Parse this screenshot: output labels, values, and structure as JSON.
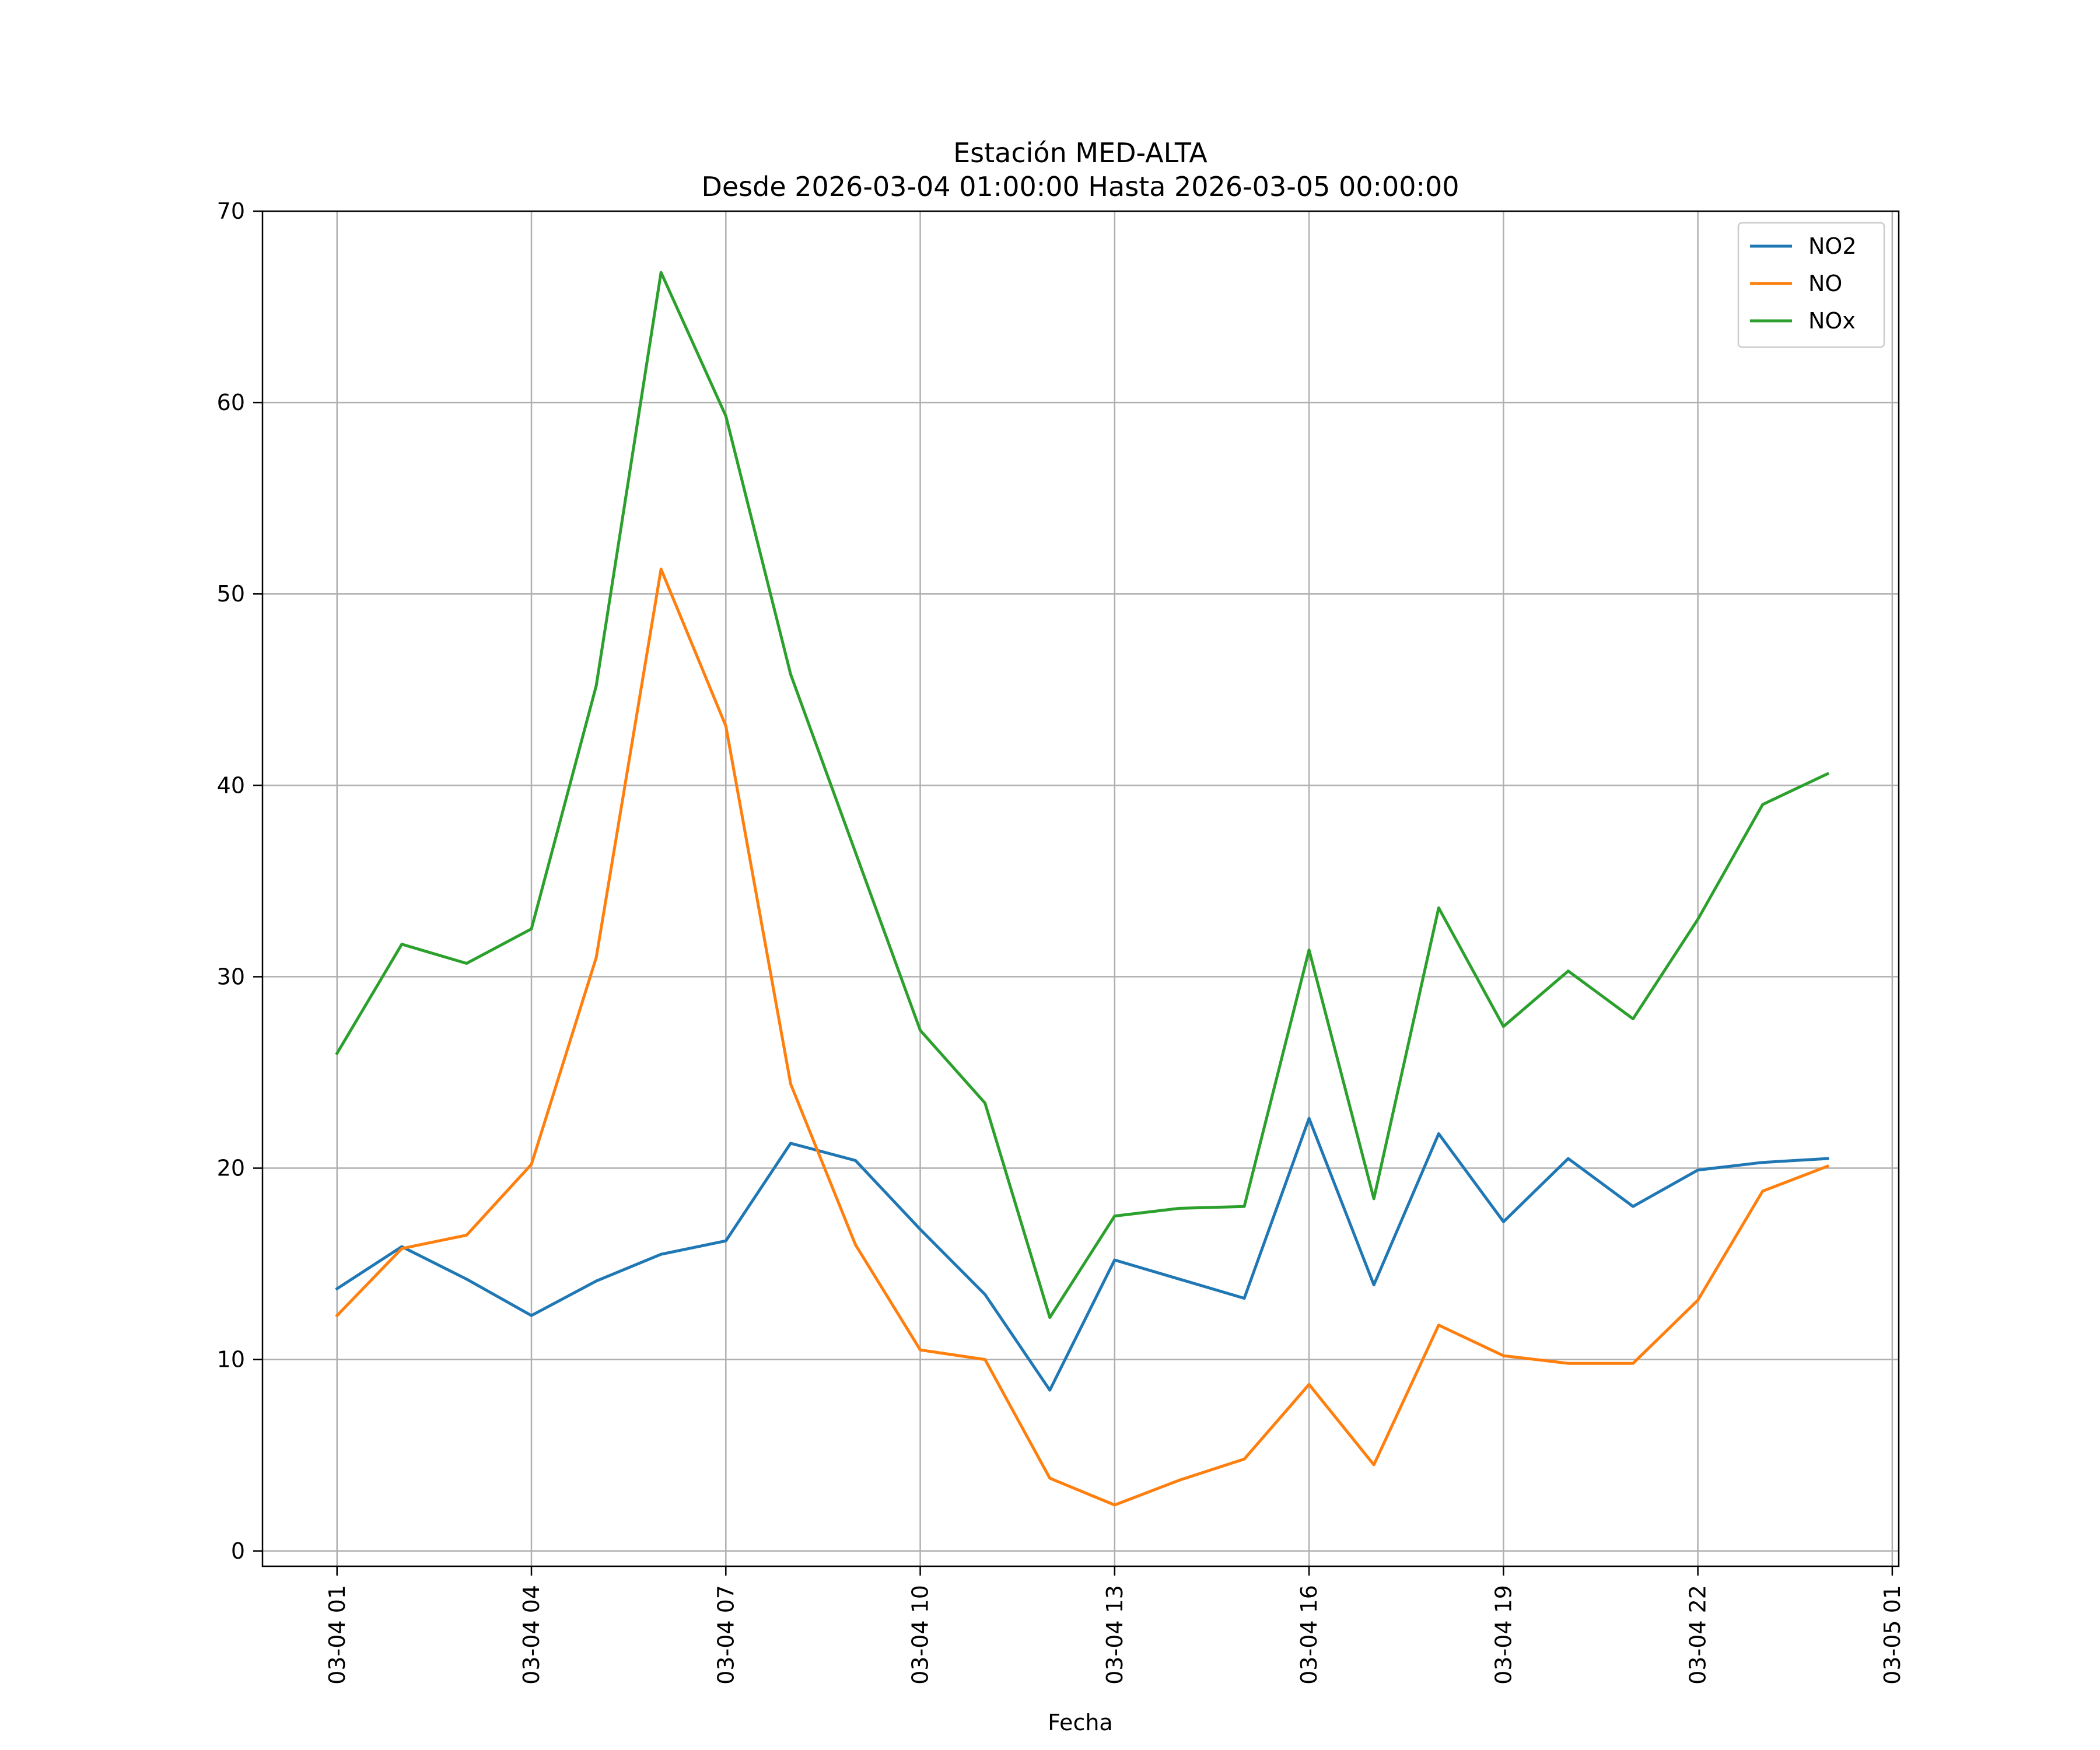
{
  "chart_data": {
    "type": "line",
    "title": "Estación MED-ALTA",
    "subtitle": "Desde 2026-03-04 01:00:00 Hasta 2026-03-05 00:00:00",
    "xlabel": "Fecha",
    "ylabel": "",
    "x": [
      "03-04 01",
      "03-04 02",
      "03-04 03",
      "03-04 04",
      "03-04 05",
      "03-04 06",
      "03-04 07",
      "03-04 08",
      "03-04 09",
      "03-04 10",
      "03-04 11",
      "03-04 12",
      "03-04 13",
      "03-04 14",
      "03-04 15",
      "03-04 16",
      "03-04 17",
      "03-04 18",
      "03-04 19",
      "03-04 20",
      "03-04 21",
      "03-04 22",
      "03-04 23",
      "03-05 00"
    ],
    "x_hours": [
      1,
      2,
      3,
      4,
      5,
      6,
      7,
      8,
      9,
      10,
      11,
      12,
      13,
      14,
      15,
      16,
      17,
      18,
      19,
      20,
      21,
      22,
      23,
      24
    ],
    "xlim": [
      -0.15,
      25.1
    ],
    "ylim": [
      -0.8,
      70
    ],
    "xticks": [
      {
        "hour": 1,
        "label": "03-04 01"
      },
      {
        "hour": 4,
        "label": "03-04 04"
      },
      {
        "hour": 7,
        "label": "03-04 07"
      },
      {
        "hour": 10,
        "label": "03-04 10"
      },
      {
        "hour": 13,
        "label": "03-04 13"
      },
      {
        "hour": 16,
        "label": "03-04 16"
      },
      {
        "hour": 19,
        "label": "03-04 19"
      },
      {
        "hour": 22,
        "label": "03-04 22"
      },
      {
        "hour": 25,
        "label": "03-05 01"
      }
    ],
    "yticks": [
      0,
      10,
      20,
      30,
      40,
      50,
      60,
      70
    ],
    "grid": true,
    "legend_position": "top-right",
    "series": [
      {
        "name": "NO2",
        "color": "#1f77b4",
        "values": [
          13.7,
          15.9,
          14.2,
          12.3,
          14.1,
          15.5,
          16.2,
          21.3,
          20.4,
          16.8,
          13.4,
          8.4,
          15.2,
          14.2,
          13.2,
          22.6,
          13.9,
          21.8,
          17.2,
          20.5,
          18.0,
          19.9,
          20.3,
          20.5
        ]
      },
      {
        "name": "NO",
        "color": "#ff7f0e",
        "values": [
          12.3,
          15.8,
          16.5,
          20.2,
          31.0,
          51.3,
          43.1,
          24.4,
          16.0,
          10.5,
          10.0,
          3.8,
          2.4,
          3.7,
          4.8,
          8.7,
          4.5,
          11.8,
          10.2,
          9.8,
          9.8,
          13.1,
          18.8,
          20.1
        ]
      },
      {
        "name": "NOx",
        "color": "#2ca02c",
        "values": [
          26.0,
          31.7,
          30.7,
          32.5,
          45.2,
          66.8,
          59.3,
          45.8,
          36.5,
          27.2,
          23.4,
          12.2,
          17.5,
          17.9,
          18.0,
          31.4,
          18.4,
          33.6,
          27.4,
          30.3,
          27.8,
          33.0,
          39.0,
          40.6
        ]
      }
    ]
  }
}
